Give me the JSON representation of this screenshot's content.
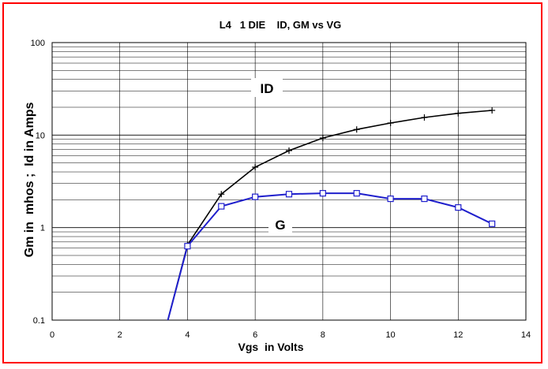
{
  "chart_data": {
    "type": "line",
    "title": "L4   1 DIE    ID, GM vs VG",
    "xlabel": "Vgs  in Volts",
    "ylabel": "Gm in  mhos ;  Id in Amps",
    "xlim": [
      0,
      14
    ],
    "ylim": [
      0.1,
      100
    ],
    "yscale": "log",
    "grid": true,
    "x_ticks": [
      "0",
      "2",
      "4",
      "6",
      "8",
      "10",
      "12",
      "14"
    ],
    "y_ticks": [
      "0.1",
      "1",
      "10",
      "100"
    ],
    "annotations": [
      "ID",
      "G"
    ],
    "series": [
      {
        "name": "ID",
        "color": "#000000",
        "marker": "plus",
        "x": [
          3.35,
          4,
          5,
          6,
          7,
          8,
          9,
          10,
          11,
          12,
          13
        ],
        "y": [
          0.08,
          0.65,
          2.3,
          4.5,
          6.8,
          9.3,
          11.5,
          13.5,
          15.5,
          17.2,
          18.5
        ]
      },
      {
        "name": "G",
        "color": "#1f1fcc",
        "marker": "square",
        "x": [
          3.35,
          4,
          5,
          6,
          7,
          8,
          9,
          10,
          11,
          12,
          13
        ],
        "y": [
          0.08,
          0.63,
          1.7,
          2.15,
          2.3,
          2.35,
          2.35,
          2.05,
          2.05,
          1.65,
          1.1
        ]
      }
    ]
  }
}
